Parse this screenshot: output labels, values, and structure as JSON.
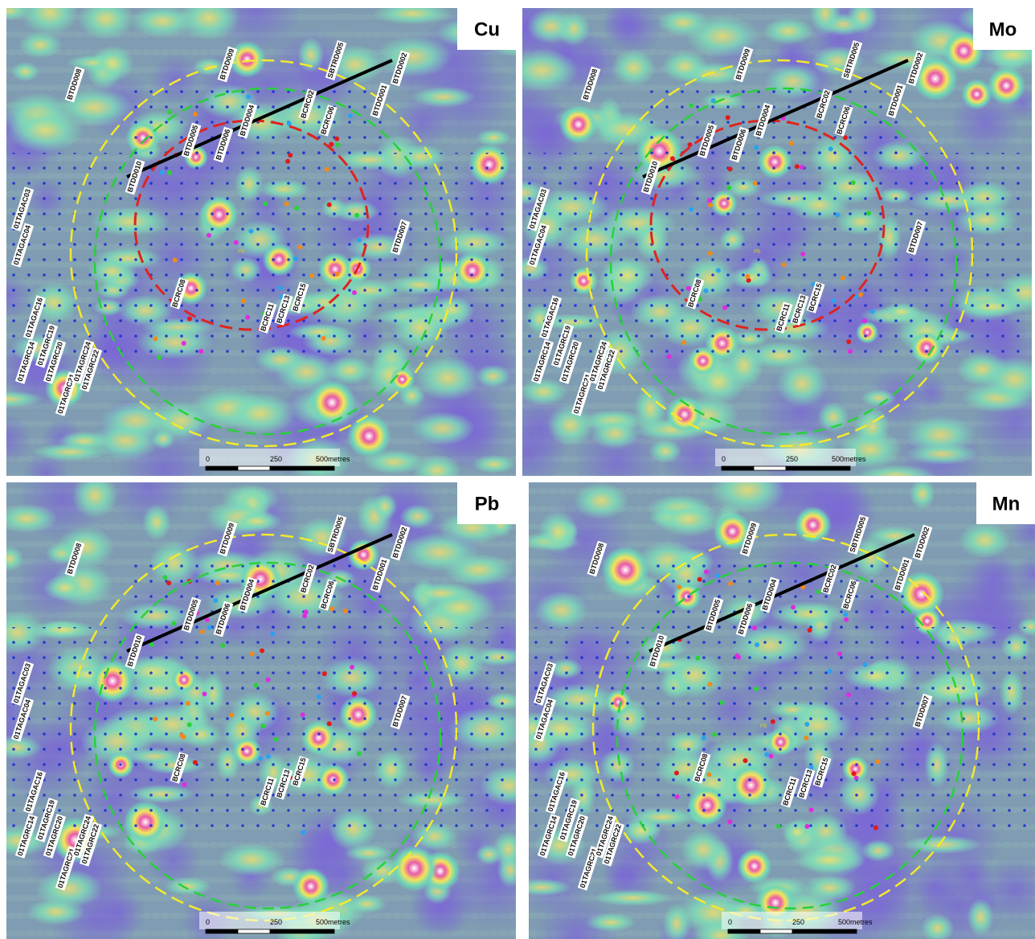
{
  "panels": [
    {
      "element": "Cu"
    },
    {
      "element": "Mo"
    },
    {
      "element": "Pb"
    },
    {
      "element": "Mn"
    }
  ],
  "center_label": "Pb",
  "scale_labels": [
    "0",
    "250",
    "500metres"
  ],
  "drillholes": [
    "BTDD008",
    "BTDD009",
    "SBTRD005",
    "BTDD002",
    "BTDD001",
    "BTDD010",
    "BTDD007",
    "01TAGAC03",
    "01TAGAC04",
    "01TAGAC16",
    "01TAGRC14",
    "01TAGRC21",
    "01TAGRC24",
    "01TAGRC22",
    "01TAGRC20",
    "01TAGRC19",
    "BCRC02",
    "BCRC06",
    "BCRC08",
    "BCRC11",
    "BCRC13",
    "BCRC15",
    "BTDD004",
    "BTDD005",
    "BTDD006"
  ]
}
